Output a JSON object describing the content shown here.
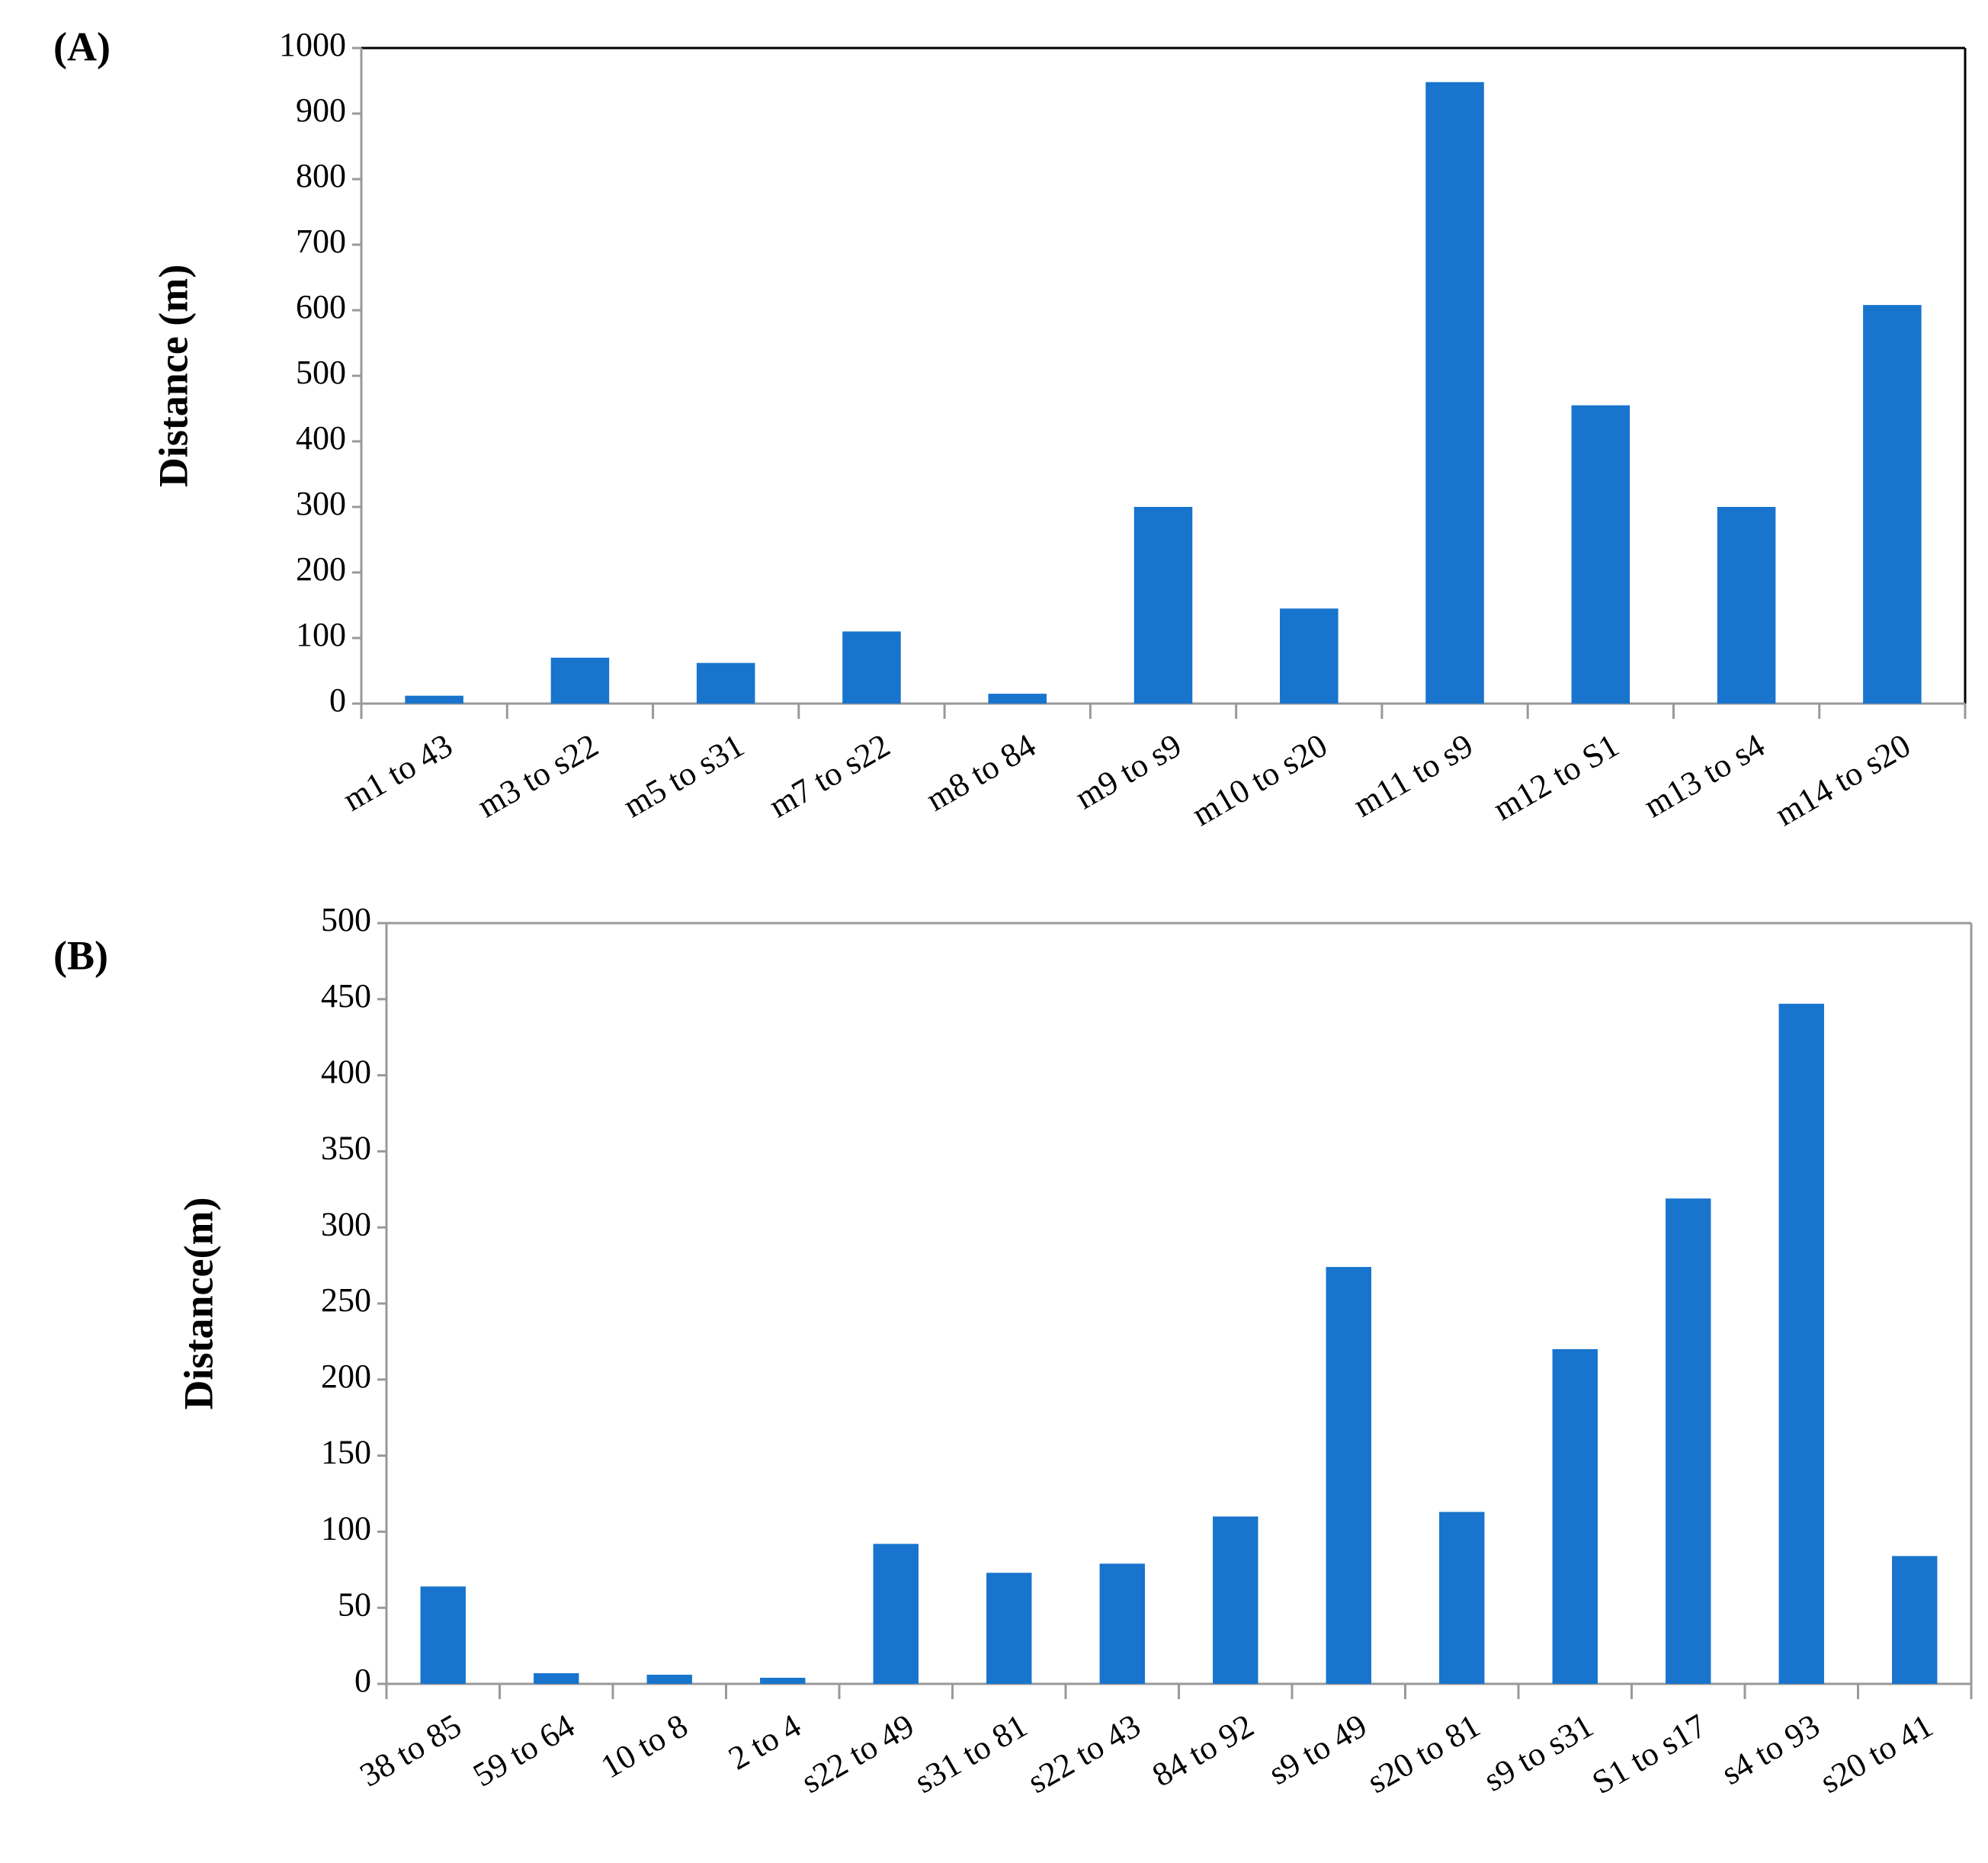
{
  "chart_data": [
    {
      "type": "bar",
      "title": "(A)",
      "ylabel": "Distance (m)",
      "categories": [
        "m1 to 43",
        "m3 to s22",
        "m5 to s31",
        "m7 to s22",
        "m8 to 84",
        "m9 to s9",
        "m10 to s20",
        "m11 to s9",
        "m12 to S1",
        "m13 to s4",
        "m14 to s20"
      ],
      "values": [
        12,
        70,
        62,
        110,
        15,
        300,
        145,
        948,
        455,
        300,
        608
      ],
      "color": "#1874cd",
      "ylim": [
        0,
        1000
      ],
      "yticks": [
        0,
        100,
        200,
        300,
        400,
        500,
        600,
        700,
        800,
        900,
        1000
      ],
      "grid": false
    },
    {
      "type": "bar",
      "title": "(B)",
      "ylabel": "Distance(m)",
      "categories": [
        "38 to 85",
        "59 to 64",
        "10 to 8",
        "2 to 4",
        "s22 to 49",
        "s31 to 81",
        "s22 to 43",
        "84 to 92",
        "s9 to 49",
        "s20 to 81",
        "s9 to s31",
        "S1 to s17",
        "s4 to 93",
        "s20 to 41"
      ],
      "values": [
        64,
        7,
        6,
        4,
        92,
        73,
        79,
        110,
        274,
        113,
        220,
        319,
        447,
        84
      ],
      "color": "#1874cd",
      "ylim": [
        0,
        500
      ],
      "yticks": [
        0,
        50,
        100,
        150,
        200,
        250,
        300,
        350,
        400,
        450,
        500
      ],
      "grid": false
    }
  ]
}
